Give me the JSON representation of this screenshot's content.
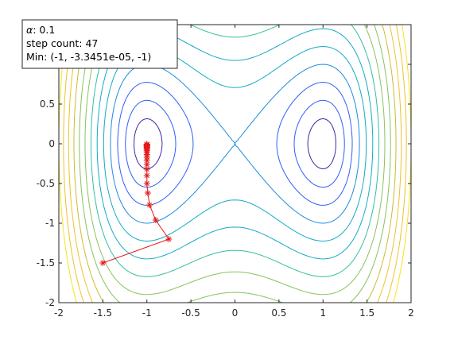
{
  "chart_data": {
    "type": "line",
    "subtype": "contour",
    "title": "",
    "xlabel": "",
    "ylabel": "",
    "xlim": [
      -2,
      2
    ],
    "ylim": [
      -2,
      1.5
    ],
    "grid": false,
    "x_ticks": [
      -2,
      -1.5,
      -1,
      -0.5,
      0,
      0.5,
      1,
      1.5,
      2
    ],
    "x_tick_labels": [
      "-2",
      "-1.5",
      "-1",
      "-0.5",
      "0",
      "0.5",
      "1",
      "1.5",
      "2"
    ],
    "y_ticks": [
      -2,
      -1.5,
      -1,
      -0.5,
      0,
      0.5,
      1
    ],
    "y_tick_labels": [
      "-2",
      "-1.5",
      "-1",
      "-0.5",
      "0",
      "0.5",
      "1"
    ],
    "contour": {
      "function": "f(x,y) = (x^2 - 1)^2 + y^2",
      "levels": [
        0.1,
        0.3,
        0.6,
        1.0,
        1.5,
        2.1,
        2.8,
        3.6,
        4.5,
        5.5,
        6.6,
        7.8,
        9.0
      ],
      "colormap": [
        "#3e26a8",
        "#2f5ef8",
        "#1c8bdc",
        "#13aac6",
        "#34bea0",
        "#86c35a",
        "#c9bd30",
        "#f2c129",
        "#f9e21b"
      ]
    },
    "series": [
      {
        "color": "#e41a1c",
        "marker": "*",
        "x": [
          -1.5,
          -0.75,
          -0.9,
          -0.97,
          -0.99,
          -1.0,
          -1.0,
          -1.0,
          -1.0,
          -1.0,
          -1.0,
          -1.0,
          -1.0,
          -1.0,
          -1.0,
          -1.0,
          -1.0,
          -1.0,
          -1.0,
          -1.0,
          -1.0,
          -1.0,
          -1.0,
          -1.0,
          -1.0
        ],
        "y": [
          -1.5,
          -1.2,
          -0.96,
          -0.77,
          -0.62,
          -0.5,
          -0.4,
          -0.32,
          -0.26,
          -0.21,
          -0.17,
          -0.135,
          -0.11,
          -0.087,
          -0.07,
          -0.056,
          -0.045,
          -0.036,
          -0.029,
          -0.023,
          -0.018,
          -0.014,
          -0.011,
          -0.008,
          -0.005
        ]
      }
    ],
    "legend": {
      "placement": "top-left",
      "alpha_symbol": "α",
      "alpha_value": ": 0.1",
      "step_label": "step count: 47",
      "min_label": "Min: (-1, -3.3451e-05, -1)"
    }
  }
}
